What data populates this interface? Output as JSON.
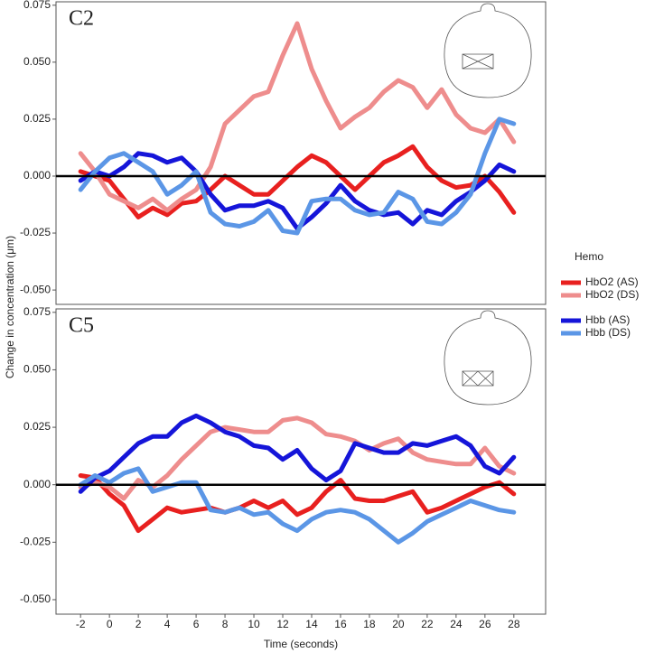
{
  "y_label": "Change in concentration (μm)",
  "x_label": "Time (seconds)",
  "legend_title": "Hemo",
  "chart_data": [
    {
      "type": "line",
      "title": "C2",
      "x": [
        -2,
        -1,
        0,
        1,
        2,
        3,
        4,
        5,
        6,
        7,
        8,
        9,
        10,
        11,
        12,
        13,
        14,
        15,
        16,
        17,
        18,
        19,
        20,
        21,
        22,
        23,
        24,
        25,
        26,
        27,
        28
      ],
      "xlim": [
        -3.7,
        30.2
      ],
      "ylim": [
        -0.0563,
        0.0765
      ],
      "yticks": [
        0.075,
        {
          "value": 0.05,
          "label": "0.050"
        },
        0.025,
        {
          "value": 0,
          "label": "0.000"
        },
        -0.025,
        {
          "value": -0.05,
          "label": "-0.050"
        }
      ],
      "hline": 0,
      "series": [
        {
          "name": "HbO2 (AS)",
          "color": "#e8201f",
          "values": [
            0.002,
            0,
            -0.002,
            -0.01,
            -0.018,
            -0.014,
            -0.017,
            -0.012,
            -0.011,
            -0.006,
            0,
            -0.004,
            -0.008,
            -0.008,
            -0.002,
            0.004,
            0.009,
            0.006,
            0,
            -0.006,
            0,
            0.006,
            0.009,
            0.013,
            0.004,
            -0.002,
            -0.005,
            -0.004,
            0,
            -0.007,
            -0.016
          ]
        },
        {
          "name": "HbO2 (DS)",
          "color": "#ee8d8d",
          "values": [
            0.01,
            0.002,
            -0.008,
            -0.011,
            -0.014,
            -0.01,
            -0.015,
            -0.01,
            -0.006,
            0.004,
            0.023,
            0.029,
            0.035,
            0.037,
            0.053,
            0.067,
            0.047,
            0.033,
            0.021,
            0.026,
            0.03,
            0.037,
            0.042,
            0.039,
            0.03,
            0.038,
            0.027,
            0.021,
            0.019,
            0.025,
            0.015
          ]
        },
        {
          "name": "Hbb (AS)",
          "color": "#1515d9",
          "values": [
            -0.002,
            0.002,
            0,
            0.004,
            0.01,
            0.009,
            0.006,
            0.008,
            0.002,
            -0.008,
            -0.015,
            -0.013,
            -0.013,
            -0.011,
            -0.014,
            -0.023,
            -0.018,
            -0.012,
            -0.004,
            -0.011,
            -0.015,
            -0.017,
            -0.016,
            -0.021,
            -0.015,
            -0.017,
            -0.011,
            -0.007,
            -0.002,
            0.005,
            0.002
          ]
        },
        {
          "name": "Hbb (DS)",
          "color": "#5b96e6",
          "values": [
            -0.006,
            0.002,
            0.008,
            0.01,
            0.006,
            0.002,
            -0.008,
            -0.004,
            0.002,
            -0.016,
            -0.021,
            -0.022,
            -0.02,
            -0.015,
            -0.024,
            -0.025,
            -0.011,
            -0.01,
            -0.01,
            -0.015,
            -0.017,
            -0.016,
            -0.007,
            -0.01,
            -0.02,
            -0.021,
            -0.016,
            -0.008,
            0.01,
            0.025,
            0.023
          ]
        }
      ]
    },
    {
      "type": "line",
      "title": "C5",
      "x": [
        -2,
        -1,
        0,
        1,
        2,
        3,
        4,
        5,
        6,
        7,
        8,
        9,
        10,
        11,
        12,
        13,
        14,
        15,
        16,
        17,
        18,
        19,
        20,
        21,
        22,
        23,
        24,
        25,
        26,
        27,
        28
      ],
      "xlim": [
        -3.7,
        30.2
      ],
      "ylim": [
        -0.0563,
        0.0765
      ],
      "xticks": [
        -2,
        0,
        2,
        4,
        6,
        8,
        10,
        12,
        14,
        16,
        18,
        20,
        22,
        24,
        26,
        28
      ],
      "yticks": [
        0.075,
        {
          "value": 0.05,
          "label": "0.050"
        },
        0.025,
        {
          "value": 0,
          "label": "0.000"
        },
        -0.025,
        {
          "value": -0.05,
          "label": "-0.050"
        }
      ],
      "hline": 0,
      "series": [
        {
          "color": "#e8201f",
          "values": [
            0.004,
            0.003,
            -0.004,
            -0.009,
            -0.02,
            -0.015,
            -0.01,
            -0.012,
            -0.011,
            -0.01,
            -0.012,
            -0.01,
            -0.007,
            -0.01,
            -0.007,
            -0.013,
            -0.01,
            -0.003,
            0.002,
            -0.006,
            -0.007,
            -0.007,
            -0.005,
            -0.003,
            -0.012,
            -0.01,
            -0.007,
            -0.004,
            -0.001,
            0.001,
            -0.004
          ]
        },
        {
          "color": "#ee8d8d",
          "values": [
            -0.001,
            0.001,
            -0.001,
            -0.006,
            0.002,
            -0.001,
            0.004,
            0.011,
            0.017,
            0.023,
            0.025,
            0.024,
            0.023,
            0.023,
            0.028,
            0.029,
            0.027,
            0.022,
            0.021,
            0.019,
            0.015,
            0.018,
            0.02,
            0.014,
            0.011,
            0.01,
            0.009,
            0.009,
            0.016,
            0.008,
            0.005
          ]
        },
        {
          "color": "#1515d9",
          "values": [
            -0.003,
            0.003,
            0.006,
            0.012,
            0.018,
            0.021,
            0.021,
            0.027,
            0.03,
            0.027,
            0.023,
            0.021,
            0.017,
            0.016,
            0.011,
            0.015,
            0.007,
            0.002,
            0.006,
            0.018,
            0.016,
            0.014,
            0.014,
            0.018,
            0.017,
            0.019,
            0.021,
            0.017,
            0.008,
            0.005,
            0.012
          ]
        },
        {
          "color": "#5b96e6",
          "values": [
            0,
            0.004,
            0.001,
            0.005,
            0.007,
            -0.003,
            -0.001,
            0.001,
            0.001,
            -0.011,
            -0.012,
            -0.01,
            -0.013,
            -0.012,
            -0.017,
            -0.02,
            -0.015,
            -0.012,
            -0.011,
            -0.012,
            -0.015,
            -0.02,
            -0.025,
            -0.021,
            -0.016,
            -0.013,
            -0.01,
            -0.007,
            -0.009,
            -0.011,
            -0.012
          ]
        }
      ]
    }
  ]
}
